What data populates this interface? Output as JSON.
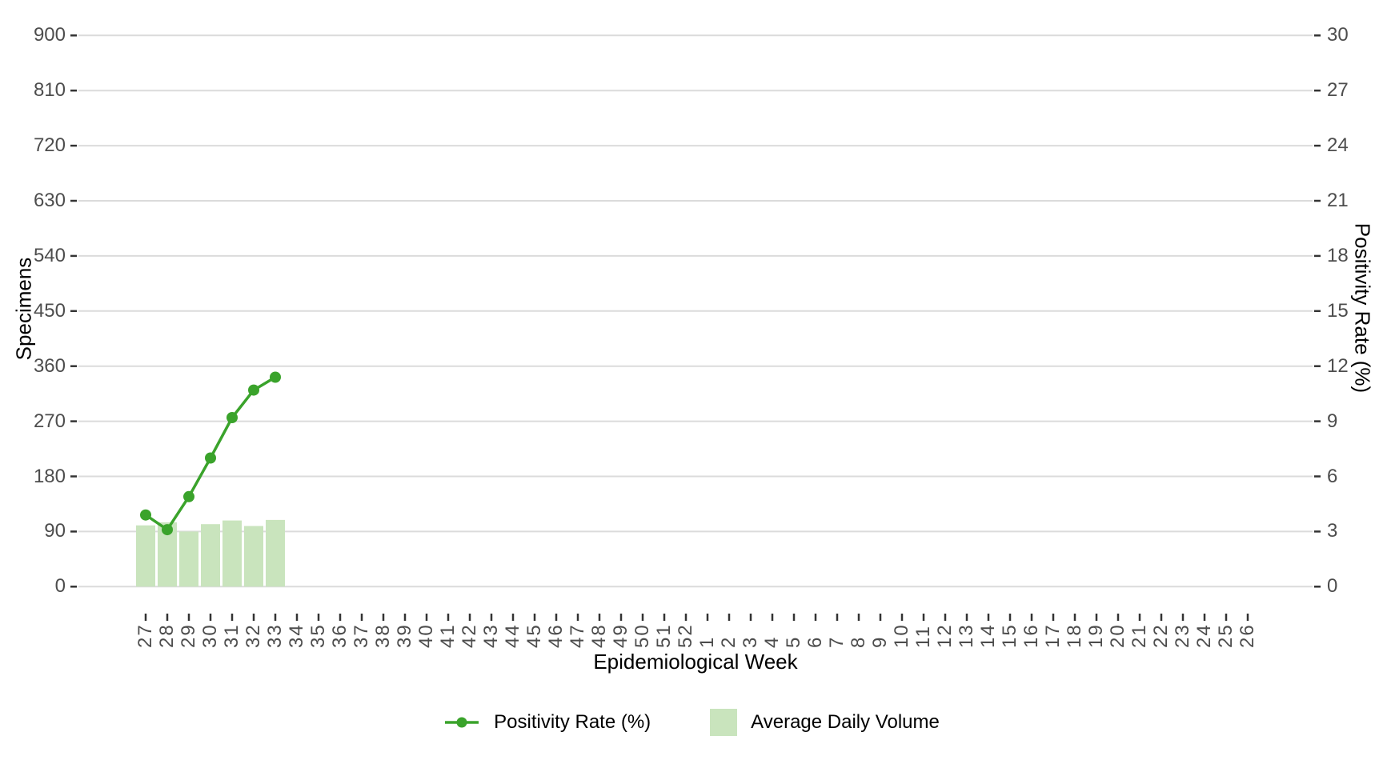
{
  "chart_data": {
    "type": "bar+line (dual axis)",
    "title": "",
    "x_axis": {
      "label": "Epidemiological Week",
      "categories": [
        "27",
        "28",
        "29",
        "30",
        "31",
        "32",
        "33",
        "34",
        "35",
        "36",
        "37",
        "38",
        "39",
        "40",
        "41",
        "42",
        "43",
        "44",
        "45",
        "46",
        "47",
        "48",
        "49",
        "50",
        "51",
        "52",
        "1",
        "2",
        "3",
        "4",
        "5",
        "6",
        "7",
        "8",
        "9",
        "10",
        "11",
        "12",
        "13",
        "14",
        "15",
        "16",
        "17",
        "18",
        "19",
        "20",
        "21",
        "22",
        "23",
        "24",
        "25",
        "26"
      ]
    },
    "left_axis": {
      "label": "Specimens",
      "range": [
        0,
        900
      ],
      "ticks": [
        0,
        90,
        180,
        270,
        360,
        450,
        540,
        630,
        720,
        810,
        900
      ]
    },
    "right_axis": {
      "label": "Positivity Rate (%)",
      "range": [
        0,
        30
      ],
      "ticks": [
        0,
        3,
        6,
        9,
        12,
        15,
        18,
        21,
        24,
        27,
        30
      ]
    },
    "series": [
      {
        "name": "Average Daily Volume",
        "type": "bar",
        "axis": "left",
        "color": "#c9e4bd",
        "categories": [
          "27",
          "28",
          "29",
          "30",
          "31",
          "32",
          "33"
        ],
        "values": [
          100,
          105,
          90,
          102,
          108,
          99,
          109
        ]
      },
      {
        "name": "Positivity Rate (%)",
        "type": "line",
        "axis": "right",
        "color": "#3aa32b",
        "categories": [
          "27",
          "28",
          "29",
          "30",
          "31",
          "32",
          "33"
        ],
        "values": [
          3.9,
          3.1,
          4.9,
          7.0,
          9.2,
          10.7,
          11.4
        ]
      }
    ],
    "legend": {
      "position": "bottom",
      "items": [
        {
          "label": "Positivity Rate (%)",
          "marker": "line-with-point"
        },
        {
          "label": "Average Daily Volume",
          "marker": "square"
        }
      ]
    },
    "grid": {
      "horizontal": true,
      "vertical": false,
      "color": "#dbdbdb"
    },
    "styles": {
      "tick_mark_color": "#333333",
      "tick_label_color": "#4d4d4d",
      "axis_title_color": "#000000",
      "background": "#ffffff"
    }
  }
}
